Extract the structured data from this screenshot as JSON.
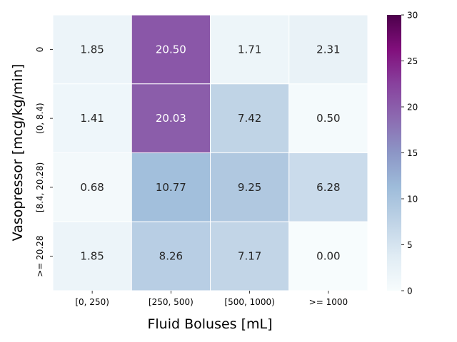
{
  "chart_data": {
    "type": "heatmap",
    "xlabel": "Fluid Boluses [mL]",
    "ylabel": "Vasopressor [mcg/kg/min]",
    "x_categories": [
      "[0, 250)",
      "[250, 500)",
      "[500, 1000)",
      ">= 1000"
    ],
    "y_categories": [
      "0",
      "(0, 8.4)",
      "[8.4, 20.28)",
      ">= 20.28"
    ],
    "values": [
      [
        1.85,
        20.5,
        1.71,
        2.31
      ],
      [
        1.41,
        20.03,
        7.42,
        0.5
      ],
      [
        0.68,
        10.77,
        9.25,
        6.28
      ],
      [
        1.85,
        8.26,
        7.17,
        0.0
      ]
    ],
    "value_labels": [
      [
        "1.85",
        "20.50",
        "1.71",
        "2.31"
      ],
      [
        "1.41",
        "20.03",
        "7.42",
        "0.50"
      ],
      [
        "0.68",
        "10.77",
        "9.25",
        "6.28"
      ],
      [
        "1.85",
        "8.26",
        "7.17",
        "0.00"
      ]
    ],
    "colorbar": {
      "range": [
        0,
        30
      ],
      "ticks": [
        0,
        5,
        10,
        15,
        20,
        25,
        30
      ],
      "colormap": "BuPu",
      "colors": [
        "#f7fcfd",
        "#e0ecf4",
        "#bfd3e6",
        "#9ebcda",
        "#8c96c6",
        "#8c6bb1",
        "#88419d",
        "#810f7c",
        "#4d004b"
      ]
    },
    "grid": false
  }
}
